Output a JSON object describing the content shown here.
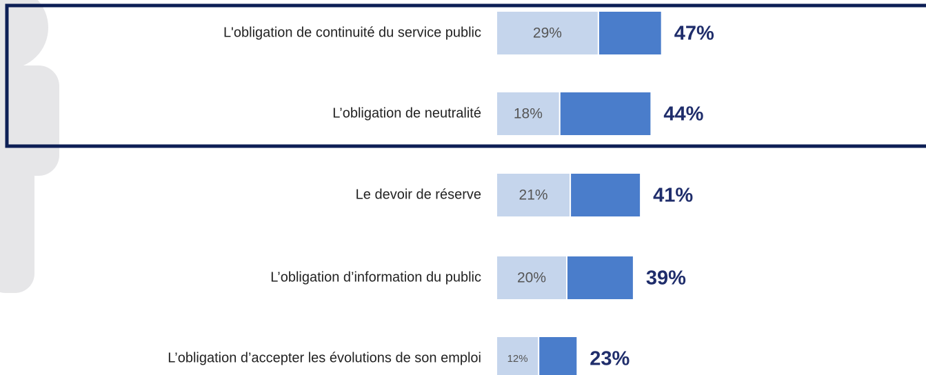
{
  "chart_data": {
    "type": "stacked_bar_horizontal",
    "categories": [
      "L'obligation de continuité du service public",
      "L’obligation de neutralité",
      "Le devoir de réserve",
      "L’obligation d’information du public",
      "L’obligation d’accepter les évolutions de son emploi"
    ],
    "series": [
      {
        "color": "#c5d5ec",
        "values": [
          29,
          18,
          21,
          20,
          12
        ],
        "value_labels": [
          "29%",
          "18%",
          "21%",
          "20%",
          "12%"
        ]
      },
      {
        "color": "#4a7dcb",
        "values": [
          18,
          26,
          20,
          19,
          11
        ]
      }
    ],
    "totals": [
      47,
      44,
      41,
      39,
      23
    ],
    "total_labels": [
      "47%",
      "44%",
      "41%",
      "39%",
      "23%"
    ],
    "xlim": [
      0,
      120
    ]
  }
}
